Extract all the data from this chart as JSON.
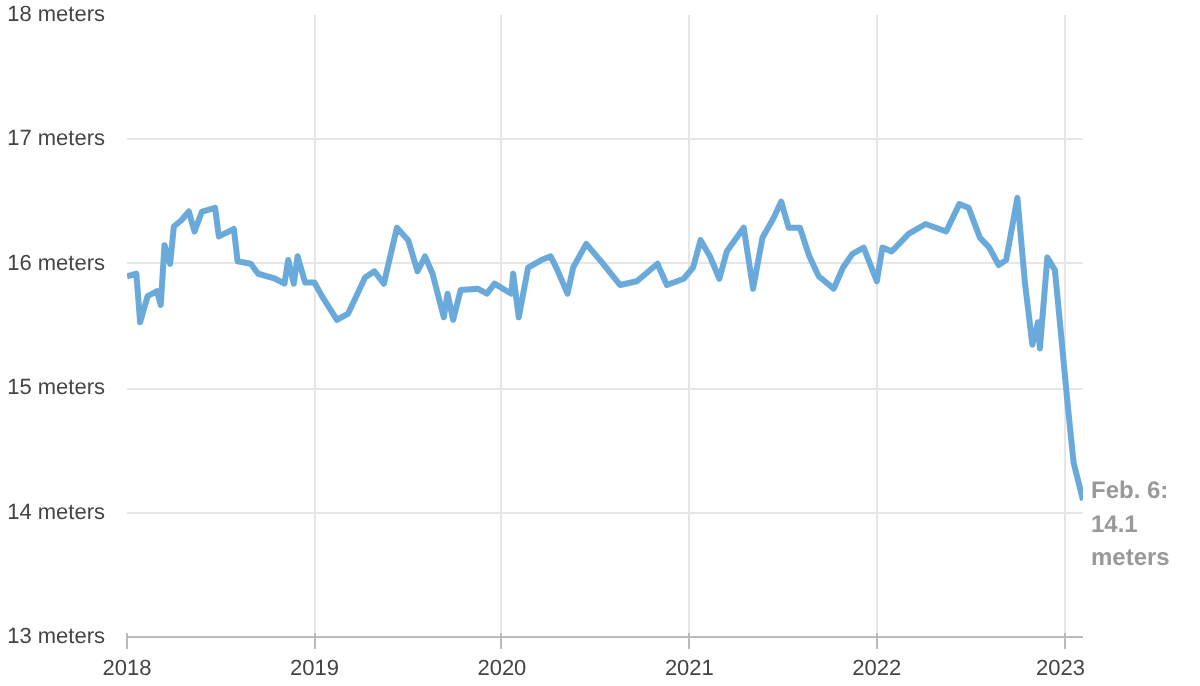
{
  "chart_data": {
    "type": "line",
    "x": [
      2018.0,
      2018.05,
      2018.07,
      2018.11,
      2018.16,
      2018.18,
      2018.2,
      2018.23,
      2018.25,
      2018.29,
      2018.33,
      2018.36,
      2018.4,
      2018.47,
      2018.49,
      2018.57,
      2018.59,
      2018.66,
      2018.7,
      2018.79,
      2018.84,
      2018.86,
      2018.89,
      2018.91,
      2018.95,
      2019.0,
      2019.04,
      2019.12,
      2019.18,
      2019.27,
      2019.32,
      2019.37,
      2019.44,
      2019.5,
      2019.55,
      2019.59,
      2019.63,
      2019.69,
      2019.71,
      2019.74,
      2019.78,
      2019.87,
      2019.92,
      2019.96,
      2020.05,
      2020.06,
      2020.09,
      2020.14,
      2020.21,
      2020.26,
      2020.29,
      2020.35,
      2020.38,
      2020.45,
      2020.54,
      2020.63,
      2020.72,
      2020.83,
      2020.88,
      2020.97,
      2021.02,
      2021.06,
      2021.11,
      2021.16,
      2021.2,
      2021.29,
      2021.34,
      2021.39,
      2021.45,
      2021.49,
      2021.53,
      2021.59,
      2021.64,
      2021.69,
      2021.77,
      2021.82,
      2021.87,
      2021.93,
      2022.0,
      2022.03,
      2022.08,
      2022.17,
      2022.26,
      2022.37,
      2022.44,
      2022.49,
      2022.55,
      2022.6,
      2022.65,
      2022.69,
      2022.75,
      2022.79,
      2022.83,
      2022.86,
      2022.87,
      2022.91,
      2022.95,
      2022.98,
      2023.02,
      2023.05,
      2023.1
    ],
    "series": [
      {
        "color": "#6aaadb",
        "values": [
          15.9,
          15.92,
          15.53,
          15.74,
          15.78,
          15.67,
          16.15,
          16.0,
          16.3,
          16.35,
          16.42,
          16.26,
          16.42,
          16.45,
          16.22,
          16.28,
          16.02,
          16.0,
          15.92,
          15.88,
          15.84,
          16.03,
          15.84,
          16.06,
          15.85,
          15.85,
          15.74,
          15.55,
          15.6,
          15.89,
          15.94,
          15.84,
          16.29,
          16.19,
          15.94,
          16.06,
          15.92,
          15.57,
          15.76,
          15.55,
          15.79,
          15.8,
          15.76,
          15.84,
          15.76,
          15.92,
          15.57,
          15.97,
          16.03,
          16.06,
          15.97,
          15.76,
          15.97,
          16.16,
          16.0,
          15.83,
          15.86,
          16.0,
          15.83,
          15.88,
          15.97,
          16.19,
          16.06,
          15.88,
          16.1,
          16.29,
          15.8,
          16.21,
          16.37,
          16.5,
          16.29,
          16.29,
          16.06,
          15.9,
          15.8,
          15.97,
          16.08,
          16.13,
          15.86,
          16.13,
          16.1,
          16.24,
          16.32,
          16.26,
          16.48,
          16.45,
          16.21,
          16.13,
          15.99,
          16.03,
          16.53,
          15.85,
          15.35,
          15.53,
          15.32,
          16.05,
          15.95,
          15.48,
          14.84,
          14.4,
          14.1
        ]
      }
    ],
    "xlim": [
      2018,
      2023.1
    ],
    "xticks": [
      2018,
      2019,
      2020,
      2021,
      2022,
      2023
    ],
    "ylim": [
      13,
      18
    ],
    "yticks": [
      {
        "value": 13,
        "label": "13 meters"
      },
      {
        "value": 14,
        "label": "14 meters"
      },
      {
        "value": 15,
        "label": "15 meters"
      },
      {
        "value": 16,
        "label": "16 meters"
      },
      {
        "value": 17,
        "label": "17 meters"
      },
      {
        "value": 18,
        "label": "18 meters"
      }
    ],
    "grid": true,
    "annotations": [
      {
        "text": "Feb. 6:\n14.1\nmeters",
        "x": 2023.1,
        "y": 14.1
      }
    ]
  }
}
